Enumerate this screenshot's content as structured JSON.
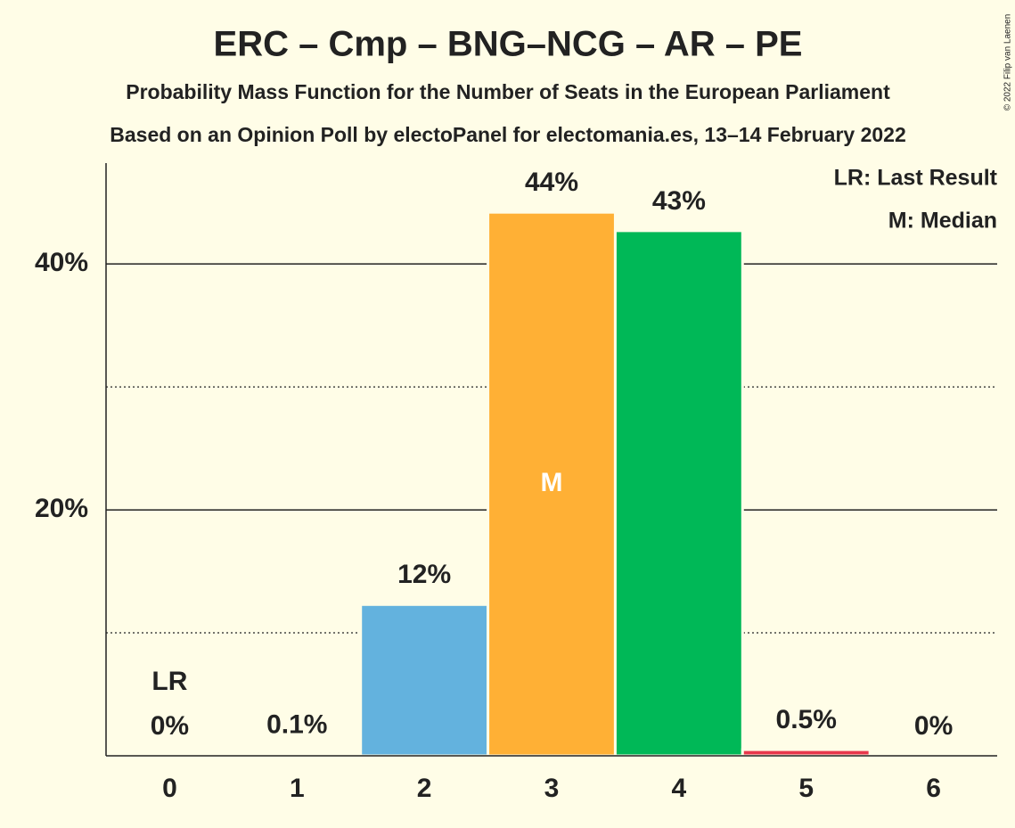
{
  "chart_data": {
    "type": "bar",
    "title": "ERC – Cmp – BNG–NCG – AR – PE",
    "subtitle": "Probability Mass Function for the Number of Seats in the European Parliament",
    "subtitle2": "Based on an Opinion Poll by electoPanel for electomania.es, 13–14 February 2022",
    "copyright": "© 2022 Filip van Laenen",
    "categories": [
      "0",
      "1",
      "2",
      "3",
      "4",
      "5",
      "6"
    ],
    "values": [
      0,
      0.1,
      12.3,
      44.2,
      42.7,
      0.5,
      0
    ],
    "value_labels": [
      "0%",
      "0.1%",
      "12%",
      "44%",
      "43%",
      "0.5%",
      "0%"
    ],
    "colors": [
      "#63b2de",
      "#63b2de",
      "#63b2de",
      "#ffb035",
      "#00b857",
      "#e8374c",
      "#e8374c"
    ],
    "ylim": [
      0,
      48.2
    ],
    "yticks": [
      {
        "value": 20,
        "label": "20%"
      },
      {
        "value": 40,
        "label": "40%"
      }
    ],
    "minor_yticks": [
      10,
      30
    ],
    "grid": true,
    "annotations": [
      {
        "text": "LR",
        "category": "0"
      },
      {
        "text": "M",
        "category": "3"
      }
    ],
    "legend": [
      "LR: Last Result",
      "M: Median"
    ],
    "legend_position": "top-right"
  }
}
